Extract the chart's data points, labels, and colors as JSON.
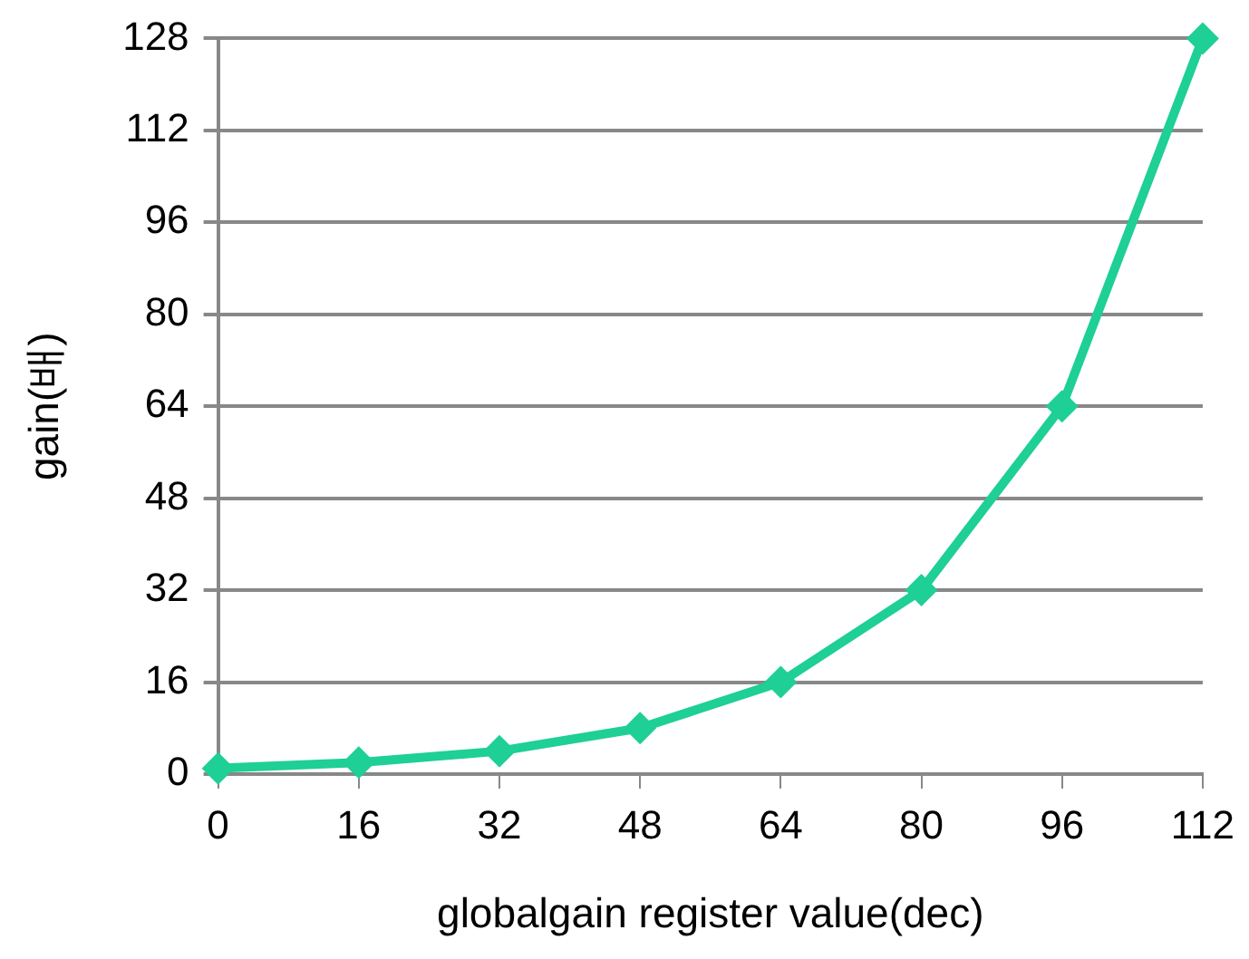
{
  "chart_data": {
    "type": "line",
    "xlabel": "globalgain register value(dec)",
    "ylabel": "gain(배)",
    "x": [
      0,
      16,
      32,
      48,
      64,
      80,
      96,
      112
    ],
    "series": [
      {
        "color": "#1ecf96",
        "values": [
          1,
          2,
          4,
          8,
          16,
          32,
          64,
          128
        ]
      }
    ],
    "xlim": [
      0,
      112
    ],
    "xticks": [
      0,
      16,
      32,
      48,
      64,
      80,
      96,
      112
    ],
    "ylim": [
      0,
      128
    ],
    "yticks": [
      0,
      16,
      32,
      48,
      64,
      80,
      96,
      112,
      128
    ],
    "grid": "y",
    "legend": false,
    "marker": "diamond",
    "line_style": "solid"
  }
}
